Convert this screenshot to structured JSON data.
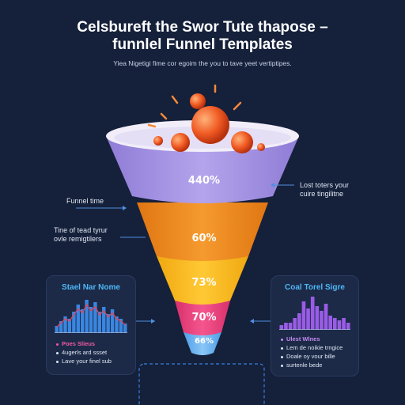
{
  "header": {
    "title_line1": "Celsbureft the Swor Tute thapose –",
    "title_line2": "funnlel Funnel Templates",
    "subtitle": "Yiea Nigetigi fime cor egoim the you to tave yeet vertiptipes."
  },
  "annotations": {
    "right_top_line1": "Lost toters your",
    "right_top_line2": "cuire tingilitne",
    "left_mid": "Funnel time",
    "left_low_line1": "Tine of tead tyrur",
    "left_low_line2": "ovle remigtilers"
  },
  "funnel": {
    "stages": [
      {
        "label": "440%",
        "color": "#a594e0"
      },
      {
        "label": "60%",
        "color": "#f08a1e"
      },
      {
        "label": "73%",
        "color": "#fbb820"
      },
      {
        "label": "70%",
        "color": "#ec4380"
      },
      {
        "label": "66%",
        "color": "#66b2f0"
      }
    ],
    "rim_color": "#f2eef9",
    "balls_color": "#f05a23"
  },
  "left_panel": {
    "title": "Stael Nar Nome",
    "title_color": "#4fb6f6",
    "bar_color": "#3a86e0",
    "line_color": "#e2455c",
    "bars": [
      3,
      5,
      7,
      6,
      9,
      12,
      10,
      14,
      11,
      13,
      9,
      11,
      8,
      10,
      7,
      6,
      4
    ],
    "bullets": [
      {
        "text": "Poes Slieus",
        "color": "#f05aa0"
      },
      {
        "text": "4ugerls ard ssset",
        "color": "#dfe6f3"
      },
      {
        "text": "Lave your finel sub",
        "color": "#dfe6f3"
      }
    ]
  },
  "right_panel": {
    "title": "Coal Torel Sigre",
    "title_color": "#4fb6f6",
    "bar_color": "#9a5ce6",
    "bars": [
      2,
      3,
      3,
      5,
      7,
      12,
      9,
      14,
      10,
      8,
      11,
      6,
      5,
      4,
      5,
      3
    ],
    "bullets": [
      {
        "text": "Ulest Wlnes",
        "color": "#c58af2"
      },
      {
        "text": "Lem de noikie trngice",
        "color": "#dfe6f3"
      },
      {
        "text": "Doale oy vour bille",
        "color": "#dfe6f3"
      },
      {
        "text": "surtenle bede",
        "color": "#dfe6f3"
      }
    ]
  }
}
